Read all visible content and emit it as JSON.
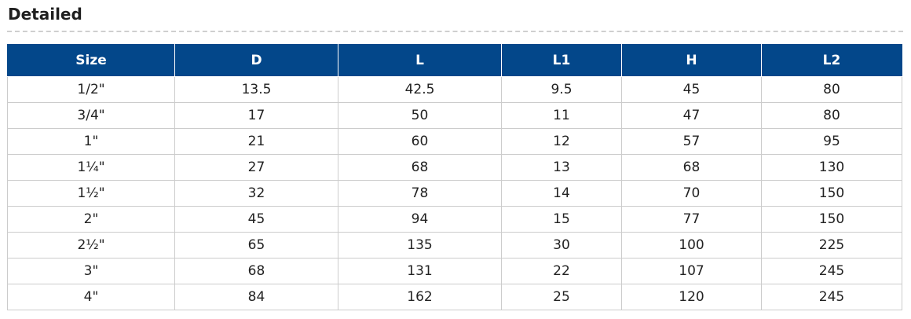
{
  "section": {
    "title": "Detailed"
  },
  "table": {
    "headers": [
      "Size",
      "D",
      "L",
      "L1",
      "H",
      "L2"
    ],
    "rows": [
      [
        "1/2\"",
        "13.5",
        "42.5",
        "9.5",
        "45",
        "80"
      ],
      [
        "3/4\"",
        "17",
        "50",
        "11",
        "47",
        "80"
      ],
      [
        "1\"",
        "21",
        "60",
        "12",
        "57",
        "95"
      ],
      [
        "1¼\"",
        "27",
        "68",
        "13",
        "68",
        "130"
      ],
      [
        "1½\"",
        "32",
        "78",
        "14",
        "70",
        "150"
      ],
      [
        "2\"",
        "45",
        "94",
        "15",
        "77",
        "150"
      ],
      [
        "2½\"",
        "65",
        "135",
        "30",
        "100",
        "225"
      ],
      [
        "3\"",
        "68",
        "131",
        "22",
        "107",
        "245"
      ],
      [
        "4\"",
        "84",
        "162",
        "25",
        "120",
        "245"
      ]
    ]
  },
  "colors": {
    "header_background": "#03478a",
    "header_text": "#ffffff",
    "grid_line": "#cccccc",
    "divider": "#cfcfcf"
  }
}
